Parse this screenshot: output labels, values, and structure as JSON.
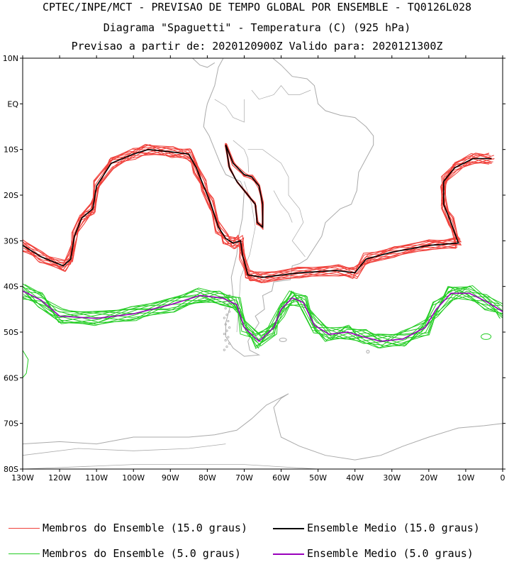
{
  "header": {
    "line1": "CPTEC/INPE/MCT - PREVISAO DE TEMPO GLOBAL POR ENSEMBLE - TQ0126L028",
    "line2": "Diagrama \"Spaguetti\" - Temperatura (C) (925 hPa)",
    "line3": "Previsao a partir de: 2020120900Z  Valido para: 2020121300Z"
  },
  "axes": {
    "lat_labels": [
      "10N",
      "EQ",
      "10S",
      "20S",
      "30S",
      "40S",
      "50S",
      "60S",
      "70S",
      "80S"
    ],
    "lon_labels": [
      "130W",
      "120W",
      "110W",
      "100W",
      "90W",
      "80W",
      "70W",
      "60W",
      "50W",
      "40W",
      "30W",
      "20W",
      "10W",
      "0"
    ]
  },
  "legend": {
    "members_15": "Membros do Ensemble (15.0 graus)",
    "mean_15": "Ensemble Medio (15.0 graus)",
    "members_5": "Membros do Ensemble (5.0 graus)",
    "mean_5": "Ensemble Medio (5.0 graus)"
  },
  "colors": {
    "members_15": "#f0403a",
    "mean_15": "#000000",
    "members_5": "#22cc22",
    "mean_5": "#9900bb",
    "coast": "#aaaaaa"
  },
  "contours": {
    "isotherm_15_mean": [
      [
        -130,
        -31
      ],
      [
        -125,
        -33.5
      ],
      [
        -119,
        -35.5
      ],
      [
        -117,
        -34
      ],
      [
        -116,
        -29
      ],
      [
        -114,
        -25
      ],
      [
        -111,
        -23
      ],
      [
        -110,
        -18
      ],
      [
        -106,
        -13
      ],
      [
        -100,
        -11
      ],
      [
        -96,
        -10
      ],
      [
        -90,
        -10.5
      ],
      [
        -85,
        -11
      ],
      [
        -83,
        -14
      ],
      [
        -81,
        -18
      ],
      [
        -79,
        -22
      ],
      [
        -77,
        -27
      ],
      [
        -75,
        -29.5
      ],
      [
        -73,
        -30.5
      ],
      [
        -71,
        -30
      ],
      [
        -70.5,
        -33
      ],
      [
        -69,
        -37.5
      ],
      [
        -65,
        -38
      ],
      [
        -55,
        -37
      ],
      [
        -45,
        -36.5
      ],
      [
        -40,
        -37
      ],
      [
        -37,
        -34
      ],
      [
        -30,
        -32.5
      ],
      [
        -20,
        -31
      ],
      [
        -12,
        -30.5
      ],
      [
        -14,
        -26
      ],
      [
        -16,
        -22
      ],
      [
        -16,
        -17
      ],
      [
        -13,
        -14
      ],
      [
        -8,
        -12
      ],
      [
        -3,
        -12
      ]
    ],
    "isotherm_15_mean_andes": [
      [
        -75,
        -9
      ],
      [
        -73,
        -13
      ],
      [
        -70,
        -15.5
      ],
      [
        -68,
        -16
      ],
      [
        -66,
        -18
      ],
      [
        -65,
        -22
      ],
      [
        -65,
        -27
      ],
      [
        -66.5,
        -26
      ],
      [
        -67,
        -22
      ],
      [
        -69,
        -20
      ],
      [
        -72,
        -17
      ],
      [
        -74,
        -14
      ],
      [
        -75,
        -9
      ]
    ],
    "isotherm_5_mean": [
      [
        -130,
        -41
      ],
      [
        -125,
        -43
      ],
      [
        -120,
        -46.5
      ],
      [
        -110,
        -47
      ],
      [
        -100,
        -46
      ],
      [
        -90,
        -44
      ],
      [
        -82,
        -42
      ],
      [
        -76,
        -42.5
      ],
      [
        -72,
        -44
      ],
      [
        -70,
        -49
      ],
      [
        -66,
        -52
      ],
      [
        -62,
        -49
      ],
      [
        -60,
        -45
      ],
      [
        -57,
        -42.5
      ],
      [
        -54,
        -43.5
      ],
      [
        -51,
        -48.5
      ],
      [
        -47,
        -50.5
      ],
      [
        -42,
        -50
      ],
      [
        -38,
        -51
      ],
      [
        -33,
        -52
      ],
      [
        -27,
        -51.5
      ],
      [
        -21,
        -49
      ],
      [
        -18,
        -45
      ],
      [
        -14,
        -41.5
      ],
      [
        -9,
        -41.5
      ],
      [
        -4,
        -43.5
      ],
      [
        0,
        -45.5
      ]
    ]
  }
}
